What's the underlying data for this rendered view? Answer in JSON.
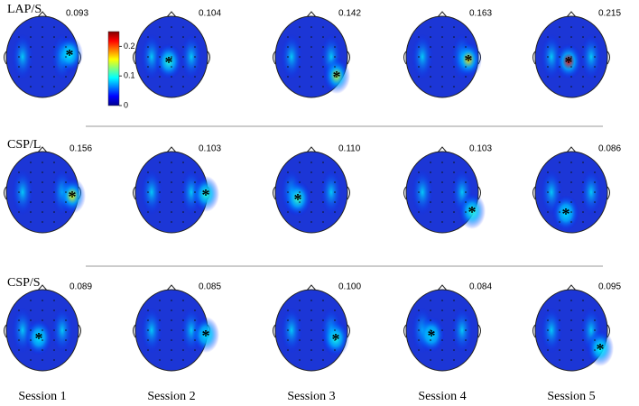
{
  "rows": [
    {
      "label": "LAP/S",
      "maps": [
        "0.093",
        "0.104",
        "0.142",
        "0.163",
        "0.215"
      ]
    },
    {
      "label": "CSP/L",
      "maps": [
        "0.156",
        "0.103",
        "0.110",
        "0.103",
        "0.086"
      ]
    },
    {
      "label": "CSP/S",
      "maps": [
        "0.089",
        "0.085",
        "0.100",
        "0.084",
        "0.095"
      ]
    }
  ],
  "sessions": [
    "Session 1",
    "Session 2",
    "Session 3",
    "Session 4",
    "Session 5"
  ],
  "colorbar": {
    "ticks": [
      0,
      0.1,
      0.2
    ]
  }
}
